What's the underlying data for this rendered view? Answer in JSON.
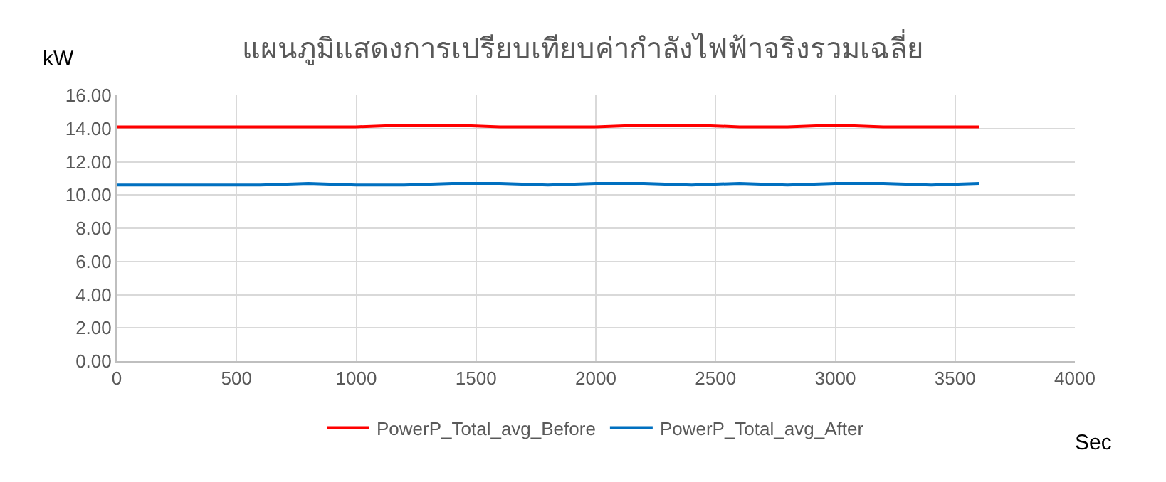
{
  "chart_data": {
    "type": "line",
    "title": "แผนภูมิแสดงการเปรียบเทียบค่ากำลังไฟฟ้าจริงรวมเฉลี่ย",
    "xlabel": "Sec",
    "ylabel": "kW",
    "x": [
      0,
      200,
      400,
      600,
      800,
      1000,
      1200,
      1400,
      1600,
      1800,
      2000,
      2200,
      2400,
      2600,
      2800,
      3000,
      3200,
      3400,
      3600
    ],
    "series": [
      {
        "name": "PowerP_Total_avg_Before",
        "color": "#ff0000",
        "values": [
          14.1,
          14.1,
          14.1,
          14.1,
          14.1,
          14.1,
          14.2,
          14.2,
          14.1,
          14.1,
          14.1,
          14.2,
          14.2,
          14.1,
          14.1,
          14.2,
          14.1,
          14.1,
          14.1
        ]
      },
      {
        "name": "PowerP_Total_avg_After",
        "color": "#0070c0",
        "values": [
          10.6,
          10.6,
          10.6,
          10.6,
          10.7,
          10.6,
          10.6,
          10.7,
          10.7,
          10.6,
          10.7,
          10.7,
          10.6,
          10.7,
          10.6,
          10.7,
          10.7,
          10.6,
          10.7
        ]
      }
    ],
    "xlim": [
      0,
      4000
    ],
    "xticks": [
      0,
      500,
      1000,
      1500,
      2000,
      2500,
      3000,
      3500,
      4000
    ],
    "ylim": [
      0,
      16
    ],
    "yticks": [
      {
        "value": 0,
        "label": "0.00"
      },
      {
        "value": 2,
        "label": "2.00"
      },
      {
        "value": 4,
        "label": "4.00"
      },
      {
        "value": 6,
        "label": "6.00"
      },
      {
        "value": 8,
        "label": "8.00"
      },
      {
        "value": 10,
        "label": "10.00"
      },
      {
        "value": 12,
        "label": "12.00"
      },
      {
        "value": 14,
        "label": "14.00"
      },
      {
        "value": 16,
        "label": "16.00"
      }
    ],
    "grid": true,
    "legend": "bottom",
    "marker": "none",
    "line_style": "solid"
  }
}
